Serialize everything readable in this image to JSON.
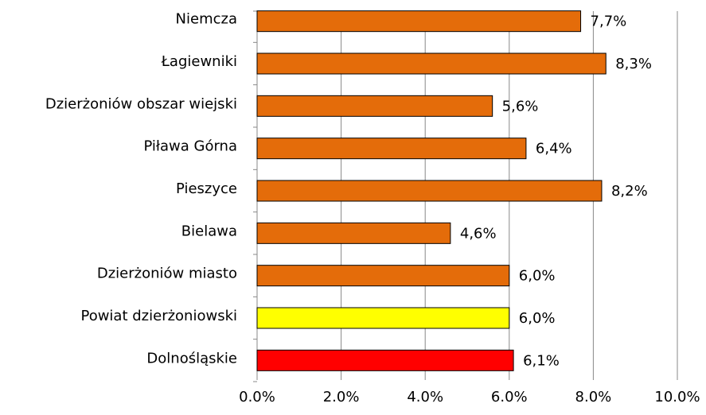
{
  "chart_data": {
    "type": "bar",
    "orientation": "horizontal",
    "categories": [
      "Niemcza",
      "Łagiewniki",
      "Dzierżoniów obszar wiejski",
      "Piława Górna",
      "Pieszyce",
      "Bielawa",
      "Dzierżoniów miasto",
      "Powiat dzierżoniowski",
      "Dolnośląskie"
    ],
    "values": [
      7.7,
      8.3,
      5.6,
      6.4,
      8.2,
      4.6,
      6.0,
      6.0,
      6.1
    ],
    "value_labels": [
      "7,7%",
      "8,3%",
      "5,6%",
      "6,4%",
      "8,2%",
      "4,6%",
      "6,0%",
      "6,0%",
      "6,1%"
    ],
    "colors": [
      "#e46c0a",
      "#e46c0a",
      "#e46c0a",
      "#e46c0a",
      "#e46c0a",
      "#e46c0a",
      "#e46c0a",
      "#ffff00",
      "#ff0000"
    ],
    "xlim": [
      0,
      10
    ],
    "xticks": [
      {
        "value": 0,
        "label": "0.0%"
      },
      {
        "value": 2,
        "label": "2.0%"
      },
      {
        "value": 4,
        "label": "4.0%"
      },
      {
        "value": 6,
        "label": "6.0%"
      },
      {
        "value": 8,
        "label": "8.0%"
      },
      {
        "value": 10,
        "label": "10.0%"
      }
    ],
    "grid": true
  }
}
